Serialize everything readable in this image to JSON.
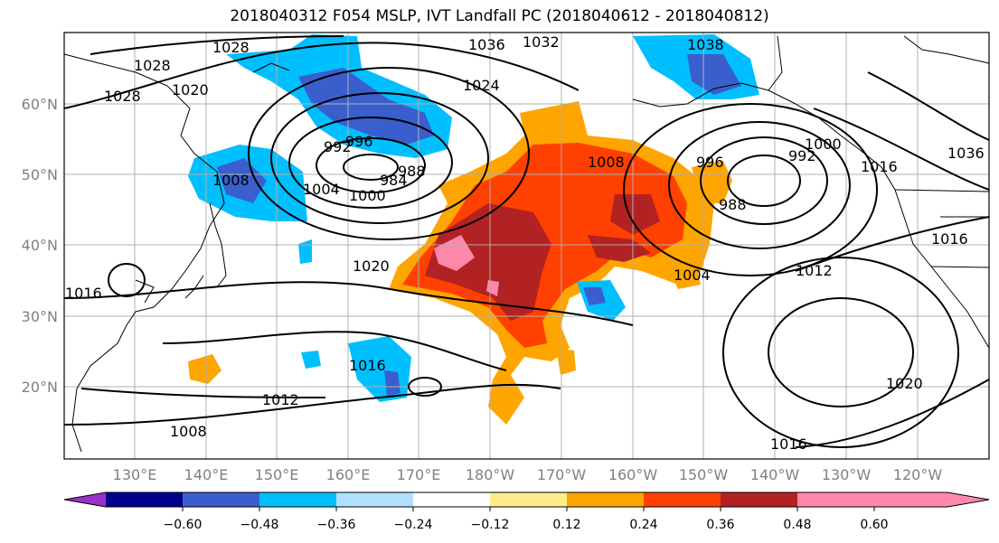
{
  "title": "2018040312 F054 MSLP, IVT Landfall PC (2018040612 - 2018040812)",
  "lat_labels": [
    "60°N",
    "50°N",
    "40°N",
    "30°N",
    "20°N"
  ],
  "lon_labels": [
    "130°E",
    "140°E",
    "150°E",
    "160°E",
    "170°E",
    "180°W",
    "170°W",
    "160°W",
    "150°W",
    "140°W",
    "130°W",
    "120°W"
  ],
  "colorbar": {
    "colors": [
      "#9932cc",
      "#00008b",
      "#3a5fcd",
      "#00bfff",
      "#b0e2ff",
      "#ffffff",
      "#ffec8b",
      "#ffa500",
      "#ff4000",
      "#b22222",
      "#ff88aa"
    ],
    "tick_labels": [
      "−0.60",
      "−0.48",
      "−0.36",
      "−0.24",
      "−0.12",
      "0.12",
      "0.24",
      "0.36",
      "0.48",
      "0.60"
    ]
  },
  "isobar_labels": [
    "1028",
    "1028",
    "1020",
    "1028",
    "1036",
    "1032",
    "1024",
    "1038",
    "992",
    "996",
    "984",
    "988",
    "1000",
    "1004",
    "1008",
    "1020",
    "1008",
    "996",
    "988",
    "992",
    "1000",
    "1016",
    "1036",
    "1016",
    "1004",
    "1012",
    "1016",
    "1012",
    "1008",
    "1016",
    "1020",
    "1016"
  ],
  "colors": {
    "contour": "#000000",
    "grid": "#b0b0b0"
  }
}
